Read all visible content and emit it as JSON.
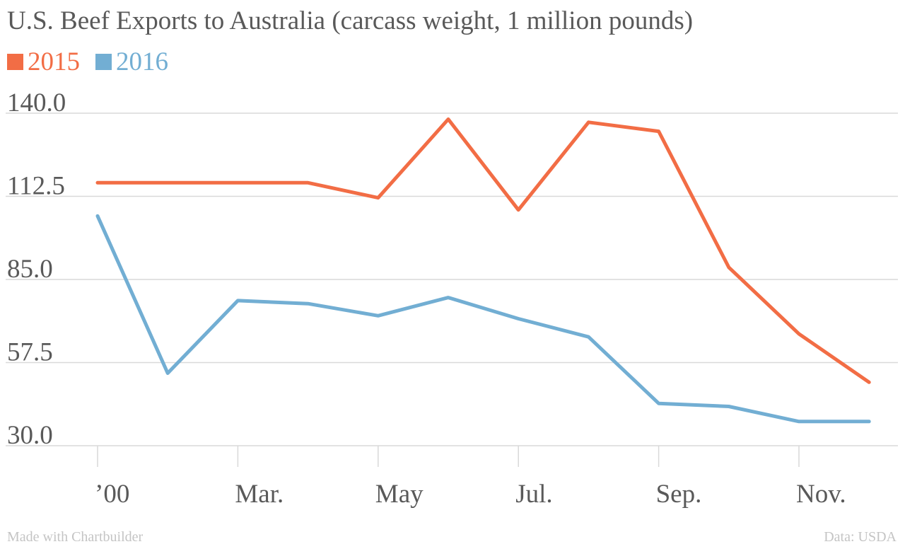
{
  "chart_data": {
    "type": "line",
    "title": "U.S. Beef Exports to Australia (carcass weight, 1 million pounds)",
    "x_positions": [
      0,
      1,
      2,
      3,
      4,
      5,
      6,
      7,
      8,
      9,
      10,
      11
    ],
    "x_tick_labels": [
      {
        "pos": 0,
        "label": "’00"
      },
      {
        "pos": 2,
        "label": "Mar."
      },
      {
        "pos": 4,
        "label": "May"
      },
      {
        "pos": 6,
        "label": "Jul."
      },
      {
        "pos": 8,
        "label": "Sep."
      },
      {
        "pos": 10,
        "label": "Nov."
      }
    ],
    "y_ticks": [
      "140.0",
      "112.5",
      "85.0",
      "57.5",
      "30.0"
    ],
    "y_tick_values": [
      140,
      112.5,
      85,
      57.5,
      30
    ],
    "ylim": [
      30,
      140
    ],
    "grid": true,
    "legend_position": "top-left",
    "series": [
      {
        "name": "2015",
        "color": "#f26d45",
        "values": [
          117,
          117,
          117,
          117,
          112,
          138,
          108,
          137,
          134,
          89,
          67,
          51
        ]
      },
      {
        "name": "2016",
        "color": "#72aed3",
        "values": [
          106,
          54,
          78,
          77,
          73,
          79,
          72,
          66,
          44,
          43,
          38,
          38
        ]
      }
    ]
  },
  "footer": {
    "credit": "Made with Chartbuilder",
    "source": "Data: USDA"
  },
  "colors": {
    "grid": "#d9d9d9",
    "text": "#595959",
    "footer_text": "#c4c4c4"
  }
}
